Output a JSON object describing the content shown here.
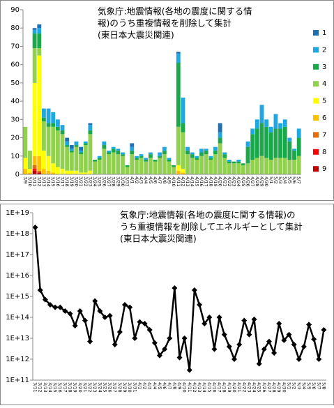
{
  "chart_data": [
    {
      "type": "stacked-bar",
      "title_lines": [
        "気象庁:地震情報(各地の震度に関する情",
        "報)のうち重複情報を削除して集計",
        "(東日本大震災関連)"
      ],
      "categories": [
        "3/9",
        "3/10",
        "3/11",
        "3/12",
        "3/13",
        "3/14",
        "3/15",
        "3/16",
        "3/17",
        "3/18",
        "3/19",
        "3/20",
        "3/21",
        "3/22",
        "3/23",
        "3/24",
        "3/25",
        "3/26",
        "3/27",
        "3/28",
        "3/29",
        "3/30",
        "3/31",
        "4/1",
        "4/2",
        "4/3",
        "4/4",
        "4/5",
        "4/6",
        "4/7",
        "4/8",
        "4/9",
        "4/10",
        "4/11",
        "4/12",
        "4/13",
        "4/14",
        "4/15",
        "4/16",
        "4/17",
        "4/18",
        "4/19",
        "4/20",
        "4/21",
        "4/22",
        "4/23",
        "4/24",
        "4/25",
        "4/26",
        "4/27",
        "4/28",
        "4/29",
        "4/30",
        "5/1",
        "5/2",
        "5/3",
        "5/4",
        "5/5",
        "5/6",
        "5/7"
      ],
      "series": [
        {
          "name": "9",
          "color": "#c00000",
          "values": [
            0,
            0,
            2,
            1,
            0,
            0,
            0,
            0,
            0,
            0,
            0,
            0,
            0,
            0,
            0,
            0,
            0,
            0,
            0,
            0,
            0,
            0,
            0,
            0,
            0,
            0,
            0,
            0,
            0,
            0,
            0,
            0,
            0,
            0,
            0,
            0,
            0,
            0,
            0,
            0,
            0,
            0,
            0,
            0,
            0,
            0,
            0,
            0,
            0,
            0,
            0,
            0,
            0,
            0,
            0,
            0,
            0,
            0,
            0,
            0
          ]
        },
        {
          "name": "8",
          "color": "#ff0000",
          "values": [
            0,
            0,
            1,
            0,
            0,
            0,
            0,
            0,
            0,
            0,
            0,
            0,
            0,
            0,
            0,
            0,
            0,
            0,
            0,
            0,
            0,
            0,
            0,
            0,
            0,
            0,
            0,
            0,
            0,
            0,
            0,
            0,
            0,
            0,
            0,
            0,
            0,
            0,
            0,
            0,
            0,
            0,
            0,
            0,
            0,
            0,
            0,
            0,
            0,
            0,
            0,
            0,
            0,
            0,
            0,
            0,
            0,
            0,
            0,
            0
          ]
        },
        {
          "name": "7",
          "color": "#e46c0a",
          "values": [
            0,
            0,
            2,
            1,
            0,
            0,
            0,
            0,
            0,
            0,
            0,
            0,
            0,
            0,
            0,
            0,
            0,
            0,
            0,
            0,
            0,
            0,
            0,
            0,
            0,
            0,
            0,
            0,
            0,
            0,
            0,
            0,
            0,
            0,
            0,
            0,
            0,
            0,
            0,
            0,
            0,
            0,
            0,
            0,
            0,
            0,
            0,
            0,
            0,
            0,
            0,
            0,
            0,
            0,
            0,
            0,
            0,
            0,
            0,
            0
          ]
        },
        {
          "name": "6",
          "color": "#ffc000",
          "values": [
            3,
            1,
            5,
            8,
            3,
            2,
            1,
            0,
            0,
            0,
            0,
            0,
            0,
            0,
            0,
            0,
            0,
            0,
            0,
            0,
            0,
            0,
            0,
            0,
            0,
            0,
            0,
            0,
            0,
            0,
            0,
            0,
            0,
            2,
            1,
            0,
            0,
            0,
            0,
            0,
            0,
            0,
            0,
            0,
            0,
            0,
            0,
            0,
            0,
            0,
            0,
            0,
            0,
            0,
            0,
            0,
            0,
            0,
            0,
            0
          ]
        },
        {
          "name": "5",
          "color": "#ffff00",
          "values": [
            6,
            2,
            40,
            55,
            10,
            8,
            5,
            4,
            3,
            2,
            2,
            2,
            1,
            1,
            2,
            0,
            0,
            0,
            0,
            0,
            0,
            0,
            0,
            0,
            0,
            0,
            0,
            0,
            0,
            0,
            0,
            0,
            0,
            3,
            2,
            0,
            0,
            0,
            0,
            0,
            0,
            0,
            0,
            0,
            0,
            0,
            0,
            0,
            0,
            0,
            0,
            0,
            0,
            0,
            0,
            0,
            0,
            0,
            0,
            0
          ]
        },
        {
          "name": "4",
          "color": "#92d050",
          "values": [
            17,
            10,
            19,
            4,
            16,
            16,
            20,
            20,
            19,
            13,
            10,
            13,
            10,
            15,
            20,
            7,
            8,
            14,
            11,
            12,
            11,
            10,
            4,
            11,
            8,
            9,
            7,
            9,
            7,
            9,
            11,
            7,
            4,
            21,
            20,
            11,
            9,
            8,
            10,
            11,
            8,
            11,
            17,
            9,
            6,
            6,
            6,
            5,
            6,
            8,
            9,
            10,
            9,
            8,
            9,
            9,
            9,
            8,
            8,
            10
          ]
        },
        {
          "name": "3",
          "color": "#1aa84a",
          "values": [
            0,
            0,
            8,
            8,
            2,
            2,
            2,
            2,
            2,
            1,
            1,
            1,
            1,
            1,
            2,
            1,
            1,
            2,
            1,
            2,
            2,
            1,
            1,
            2,
            1,
            1,
            1,
            2,
            1,
            1,
            2,
            1,
            1,
            35,
            5,
            2,
            2,
            1,
            2,
            2,
            1,
            2,
            3,
            2,
            1,
            1,
            1,
            1,
            9,
            14,
            16,
            18,
            17,
            15,
            16,
            16,
            17,
            10,
            5,
            10
          ]
        },
        {
          "name": "2",
          "color": "#1ea7e1",
          "values": [
            0,
            0,
            2,
            3,
            5,
            8,
            6,
            4,
            3,
            2,
            1,
            2,
            1,
            1,
            3,
            0,
            1,
            2,
            1,
            1,
            1,
            1,
            0,
            2,
            1,
            1,
            1,
            1,
            0,
            2,
            2,
            1,
            0,
            5,
            14,
            2,
            1,
            1,
            2,
            1,
            1,
            2,
            3,
            1,
            1,
            0,
            1,
            0,
            3,
            3,
            5,
            10,
            4,
            3,
            8,
            3,
            4,
            2,
            1,
            5
          ]
        },
        {
          "name": "1",
          "color": "#1f6fb5",
          "values": [
            0,
            0,
            1,
            2,
            0,
            0,
            0,
            0,
            0,
            2,
            2,
            0,
            2,
            0,
            1,
            0,
            0,
            0,
            0,
            0,
            0,
            0,
            0,
            2,
            0,
            0,
            0,
            0,
            0,
            0,
            0,
            0,
            0,
            1,
            0,
            0,
            0,
            0,
            0,
            0,
            0,
            0,
            5,
            0,
            0,
            0,
            0,
            0,
            0,
            0,
            0,
            0,
            0,
            0,
            0,
            0,
            0,
            0,
            0,
            0
          ]
        }
      ],
      "ylim": [
        0,
        90
      ],
      "yticks": [
        0,
        10,
        20,
        30,
        40,
        50,
        60,
        70,
        80,
        90
      ],
      "legend": "right"
    },
    {
      "type": "line",
      "log": true,
      "title_lines": [
        "気象庁:地震情報(各地の震度に関する情報)の",
        "うち重複情報を削除してエネルギーとして集計",
        "(東日本大震災関連)"
      ],
      "categories": [
        "3/11",
        "3/12",
        "3/13",
        "3/14",
        "3/15",
        "3/16",
        "3/17",
        "3/18",
        "3/19",
        "3/20",
        "3/21",
        "3/22",
        "3/23",
        "3/24",
        "3/25",
        "3/26",
        "3/27",
        "3/28",
        "3/29",
        "3/30",
        "3/31",
        "4/1",
        "4/2",
        "4/3",
        "4/4",
        "4/5",
        "4/6",
        "4/7",
        "4/8",
        "4/9",
        "4/10",
        "4/11",
        "4/12",
        "4/13",
        "4/14",
        "4/15",
        "4/16",
        "4/17",
        "4/18",
        "4/19",
        "4/20",
        "4/21",
        "4/22",
        "4/23",
        "4/24",
        "4/25",
        "4/26",
        "4/27",
        "4/28",
        "4/29",
        "4/30",
        "5/1",
        "5/2",
        "5/3",
        "5/4",
        "5/5",
        "5/6",
        "5/7",
        "5/8"
      ],
      "values": [
        2e+18,
        2000000000000000.0,
        700000000000000.0,
        400000000000000.0,
        300000000000000.0,
        300000000000000.0,
        200000000000000.0,
        150000000000000.0,
        40000000000000.0,
        200000000000000.0,
        70000000000000.0,
        7000000000000.0,
        600000000000000.0,
        200000000000000.0,
        100000000000000.0,
        120000000000000.0,
        5000000000000.0,
        20000000000000.0,
        400000000000000.0,
        300000000000000.0,
        10000000000000.0,
        60000000000000.0,
        50000000000000.0,
        25000000000000.0,
        6000000000000.0,
        1500000000000.0,
        3000000000000.0,
        10000000000000.0,
        2500000000000000.0,
        1200000000000.0,
        10000000000000.0,
        300000000000.0,
        2000000000000000.0,
        400000000000000.0,
        50000000000000.0,
        100000000000000.0,
        3000000000000.0,
        100000000000000.0,
        15000000000000.0,
        4000000000000.0,
        1000000000000.0,
        5000000000000.0,
        70000000000000.0,
        15000000000000.0,
        80000000000000.0,
        600000000000.0,
        3000000000000.0,
        7000000000000.0,
        2000000000000.0,
        50000000000000.0,
        8000000000000.0,
        15000000000000.0,
        5000000000000.0,
        1000000000000.0,
        4000000000000.0,
        45000000000000.0,
        9000000000000.0,
        1000000000000.0,
        25000000000000.0
      ],
      "color": "#000000",
      "ylim": [
        100000000000.0,
        1e+19
      ],
      "yticks": [
        {
          "value": 100000000000.0,
          "label": "1E+11"
        },
        {
          "value": 1000000000000.0,
          "label": "1E+12"
        },
        {
          "value": 10000000000000.0,
          "label": "1E+13"
        },
        {
          "value": 100000000000000.0,
          "label": "1E+14"
        },
        {
          "value": 1000000000000000.0,
          "label": "1E+15"
        },
        {
          "value": 1e+16,
          "label": "1E+16"
        },
        {
          "value": 1e+17,
          "label": "1E+17"
        },
        {
          "value": 1e+18,
          "label": "1E+18"
        },
        {
          "value": 1e+19,
          "label": "1E+19"
        }
      ]
    }
  ]
}
